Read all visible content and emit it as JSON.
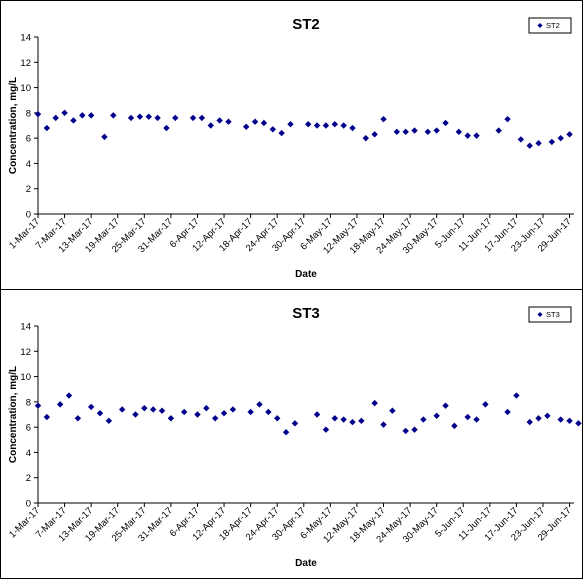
{
  "chart_data": [
    {
      "type": "scatter",
      "title": "ST2",
      "xlabel": "Date",
      "ylabel": "Concentration, mg/L",
      "ylim": [
        0,
        14
      ],
      "yticks": [
        0,
        2,
        4,
        6,
        8,
        10,
        12,
        14
      ],
      "xlim": [
        "2017-03-01",
        "2017-06-30"
      ],
      "xtick_labels": [
        "1-Mar-17",
        "7-Mar-17",
        "13-Mar-17",
        "19-Mar-17",
        "25-Mar-17",
        "31-Mar-17",
        "6-Apr-17",
        "12-Apr-17",
        "18-Apr-17",
        "24-Apr-17",
        "30-Apr-17",
        "6-May-17",
        "12-May-17",
        "18-May-17",
        "24-May-17",
        "30-May-17",
        "5-Jun-17",
        "11-Jun-17",
        "17-Jun-17",
        "23-Jun-17",
        "29-Jun-17"
      ],
      "legend": "top-right",
      "color": "#00008B",
      "series": [
        {
          "name": "ST2",
          "points": [
            [
              "2017-03-01",
              7.9
            ],
            [
              "2017-03-03",
              6.8
            ],
            [
              "2017-03-05",
              7.6
            ],
            [
              "2017-03-07",
              8.0
            ],
            [
              "2017-03-09",
              7.4
            ],
            [
              "2017-03-11",
              7.8
            ],
            [
              "2017-03-13",
              7.8
            ],
            [
              "2017-03-16",
              6.1
            ],
            [
              "2017-03-18",
              7.8
            ],
            [
              "2017-03-22",
              7.6
            ],
            [
              "2017-03-24",
              7.7
            ],
            [
              "2017-03-26",
              7.7
            ],
            [
              "2017-03-28",
              7.6
            ],
            [
              "2017-03-30",
              6.8
            ],
            [
              "2017-04-01",
              7.6
            ],
            [
              "2017-04-05",
              7.6
            ],
            [
              "2017-04-07",
              7.6
            ],
            [
              "2017-04-09",
              7.0
            ],
            [
              "2017-04-11",
              7.4
            ],
            [
              "2017-04-13",
              7.3
            ],
            [
              "2017-04-17",
              6.9
            ],
            [
              "2017-04-19",
              7.3
            ],
            [
              "2017-04-21",
              7.2
            ],
            [
              "2017-04-23",
              6.7
            ],
            [
              "2017-04-25",
              6.4
            ],
            [
              "2017-04-27",
              7.1
            ],
            [
              "2017-05-01",
              7.1
            ],
            [
              "2017-05-03",
              7.0
            ],
            [
              "2017-05-05",
              7.0
            ],
            [
              "2017-05-07",
              7.1
            ],
            [
              "2017-05-09",
              7.0
            ],
            [
              "2017-05-11",
              6.8
            ],
            [
              "2017-05-14",
              6.0
            ],
            [
              "2017-05-16",
              6.3
            ],
            [
              "2017-05-18",
              7.5
            ],
            [
              "2017-05-21",
              6.5
            ],
            [
              "2017-05-23",
              6.5
            ],
            [
              "2017-05-25",
              6.6
            ],
            [
              "2017-05-28",
              6.5
            ],
            [
              "2017-05-30",
              6.6
            ],
            [
              "2017-06-01",
              7.2
            ],
            [
              "2017-06-04",
              6.5
            ],
            [
              "2017-06-06",
              6.2
            ],
            [
              "2017-06-08",
              6.2
            ],
            [
              "2017-06-13",
              6.6
            ],
            [
              "2017-06-15",
              7.5
            ],
            [
              "2017-06-18",
              5.9
            ],
            [
              "2017-06-20",
              5.4
            ],
            [
              "2017-06-22",
              5.6
            ],
            [
              "2017-06-25",
              5.7
            ],
            [
              "2017-06-27",
              6.0
            ],
            [
              "2017-06-29",
              6.3
            ]
          ]
        }
      ]
    },
    {
      "type": "scatter",
      "title": "ST3",
      "xlabel": "Date",
      "ylabel": "Concentration, mg/L",
      "ylim": [
        0,
        14
      ],
      "yticks": [
        0,
        2,
        4,
        6,
        8,
        10,
        12,
        14
      ],
      "xlim": [
        "2017-03-01",
        "2017-06-30"
      ],
      "xtick_labels": [
        "1-Mar-17",
        "7-Mar-17",
        "13-Mar-17",
        "19-Mar-17",
        "25-Mar-17",
        "31-Mar-17",
        "6-Apr-17",
        "12-Apr-17",
        "18-Apr-17",
        "24-Apr-17",
        "30-Apr-17",
        "6-May-17",
        "12-May-17",
        "18-May-17",
        "24-May-17",
        "30-May-17",
        "5-Jun-17",
        "11-Jun-17",
        "17-Jun-17",
        "23-Jun-17",
        "29-Jun-17"
      ],
      "legend": "top-right",
      "color": "#00008B",
      "series": [
        {
          "name": "ST3",
          "points": [
            [
              "2017-03-01",
              7.7
            ],
            [
              "2017-03-03",
              6.8
            ],
            [
              "2017-03-06",
              7.8
            ],
            [
              "2017-03-08",
              8.5
            ],
            [
              "2017-03-10",
              6.7
            ],
            [
              "2017-03-13",
              7.6
            ],
            [
              "2017-03-15",
              7.1
            ],
            [
              "2017-03-17",
              6.5
            ],
            [
              "2017-03-20",
              7.4
            ],
            [
              "2017-03-23",
              7.0
            ],
            [
              "2017-03-25",
              7.5
            ],
            [
              "2017-03-27",
              7.4
            ],
            [
              "2017-03-29",
              7.3
            ],
            [
              "2017-03-31",
              6.7
            ],
            [
              "2017-04-03",
              7.2
            ],
            [
              "2017-04-06",
              7.0
            ],
            [
              "2017-04-08",
              7.5
            ],
            [
              "2017-04-10",
              6.7
            ],
            [
              "2017-04-12",
              7.1
            ],
            [
              "2017-04-14",
              7.4
            ],
            [
              "2017-04-18",
              7.2
            ],
            [
              "2017-04-20",
              7.8
            ],
            [
              "2017-04-22",
              7.2
            ],
            [
              "2017-04-24",
              6.7
            ],
            [
              "2017-04-26",
              5.6
            ],
            [
              "2017-04-28",
              6.3
            ],
            [
              "2017-05-03",
              7.0
            ],
            [
              "2017-05-05",
              5.8
            ],
            [
              "2017-05-07",
              6.7
            ],
            [
              "2017-05-09",
              6.6
            ],
            [
              "2017-05-11",
              6.4
            ],
            [
              "2017-05-13",
              6.5
            ],
            [
              "2017-05-16",
              7.9
            ],
            [
              "2017-05-18",
              6.2
            ],
            [
              "2017-05-20",
              7.3
            ],
            [
              "2017-05-23",
              5.7
            ],
            [
              "2017-05-25",
              5.8
            ],
            [
              "2017-05-27",
              6.6
            ],
            [
              "2017-05-30",
              6.9
            ],
            [
              "2017-06-01",
              7.7
            ],
            [
              "2017-06-03",
              6.1
            ],
            [
              "2017-06-06",
              6.8
            ],
            [
              "2017-06-08",
              6.6
            ],
            [
              "2017-06-10",
              7.8
            ],
            [
              "2017-06-15",
              7.2
            ],
            [
              "2017-06-17",
              8.5
            ],
            [
              "2017-06-20",
              6.4
            ],
            [
              "2017-06-22",
              6.7
            ],
            [
              "2017-06-24",
              6.9
            ],
            [
              "2017-06-27",
              6.6
            ],
            [
              "2017-06-29",
              6.5
            ],
            [
              "2017-07-01",
              6.3
            ]
          ]
        }
      ]
    }
  ]
}
